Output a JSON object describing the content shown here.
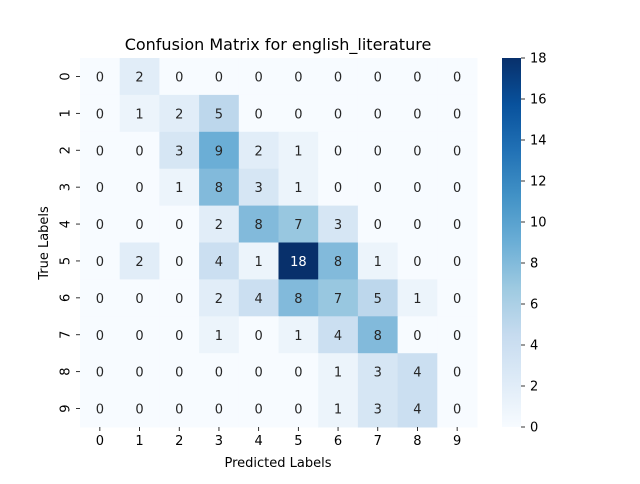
{
  "chart_data": {
    "type": "heatmap",
    "title": "Confusion Matrix for english_literature",
    "xlabel": "Predicted Labels",
    "ylabel": "True Labels",
    "x_categories": [
      "0",
      "1",
      "2",
      "3",
      "4",
      "5",
      "6",
      "7",
      "8",
      "9"
    ],
    "y_categories": [
      "0",
      "1",
      "2",
      "3",
      "4",
      "5",
      "6",
      "7",
      "8",
      "9"
    ],
    "values": [
      [
        0,
        2,
        0,
        0,
        0,
        0,
        0,
        0,
        0,
        0
      ],
      [
        0,
        1,
        2,
        5,
        0,
        0,
        0,
        0,
        0,
        0
      ],
      [
        0,
        0,
        3,
        9,
        2,
        1,
        0,
        0,
        0,
        0
      ],
      [
        0,
        0,
        1,
        8,
        3,
        1,
        0,
        0,
        0,
        0
      ],
      [
        0,
        0,
        0,
        2,
        8,
        7,
        3,
        0,
        0,
        0
      ],
      [
        0,
        2,
        0,
        4,
        1,
        18,
        8,
        1,
        0,
        0
      ],
      [
        0,
        0,
        0,
        2,
        4,
        8,
        7,
        5,
        1,
        0
      ],
      [
        0,
        0,
        0,
        1,
        0,
        1,
        4,
        8,
        0,
        0
      ],
      [
        0,
        0,
        0,
        0,
        0,
        0,
        1,
        3,
        4,
        0
      ],
      [
        0,
        0,
        0,
        0,
        0,
        0,
        1,
        3,
        4,
        0
      ]
    ],
    "colorbar": {
      "min": 0,
      "max": 18,
      "ticks": [
        0,
        2,
        4,
        6,
        8,
        10,
        12,
        14,
        16,
        18
      ]
    },
    "colormap": "Blues",
    "grid": false
  }
}
